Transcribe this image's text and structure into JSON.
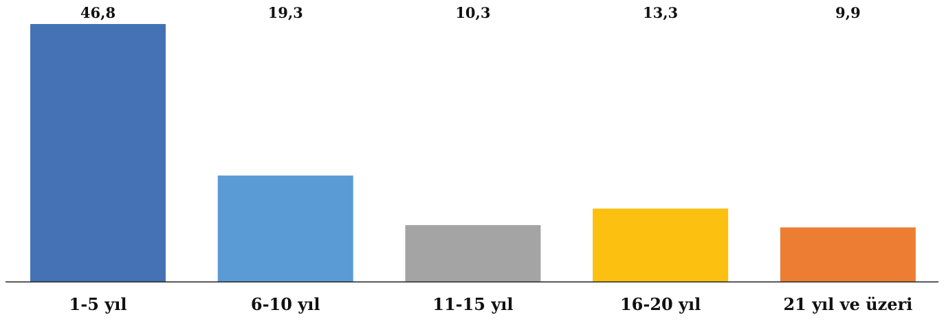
{
  "chart_data": {
    "type": "bar",
    "categories": [
      "1-5 yıl",
      "6-10 yıl",
      "11-15 yıl",
      "16-20 yıl",
      "21 yıl ve üzeri"
    ],
    "values": [
      46.8,
      19.3,
      10.3,
      13.3,
      9.9
    ],
    "value_labels": [
      "46,8",
      "19,3",
      "10,3",
      "13,3",
      "9,9"
    ],
    "colors": [
      "#4472b4",
      "#5b9bd5",
      "#a5a4a5",
      "#fcc010",
      "#ed7d32"
    ],
    "ylim": [
      0,
      46.8
    ],
    "grid": false,
    "legend": "none",
    "title": "",
    "xlabel": "",
    "ylabel": ""
  }
}
